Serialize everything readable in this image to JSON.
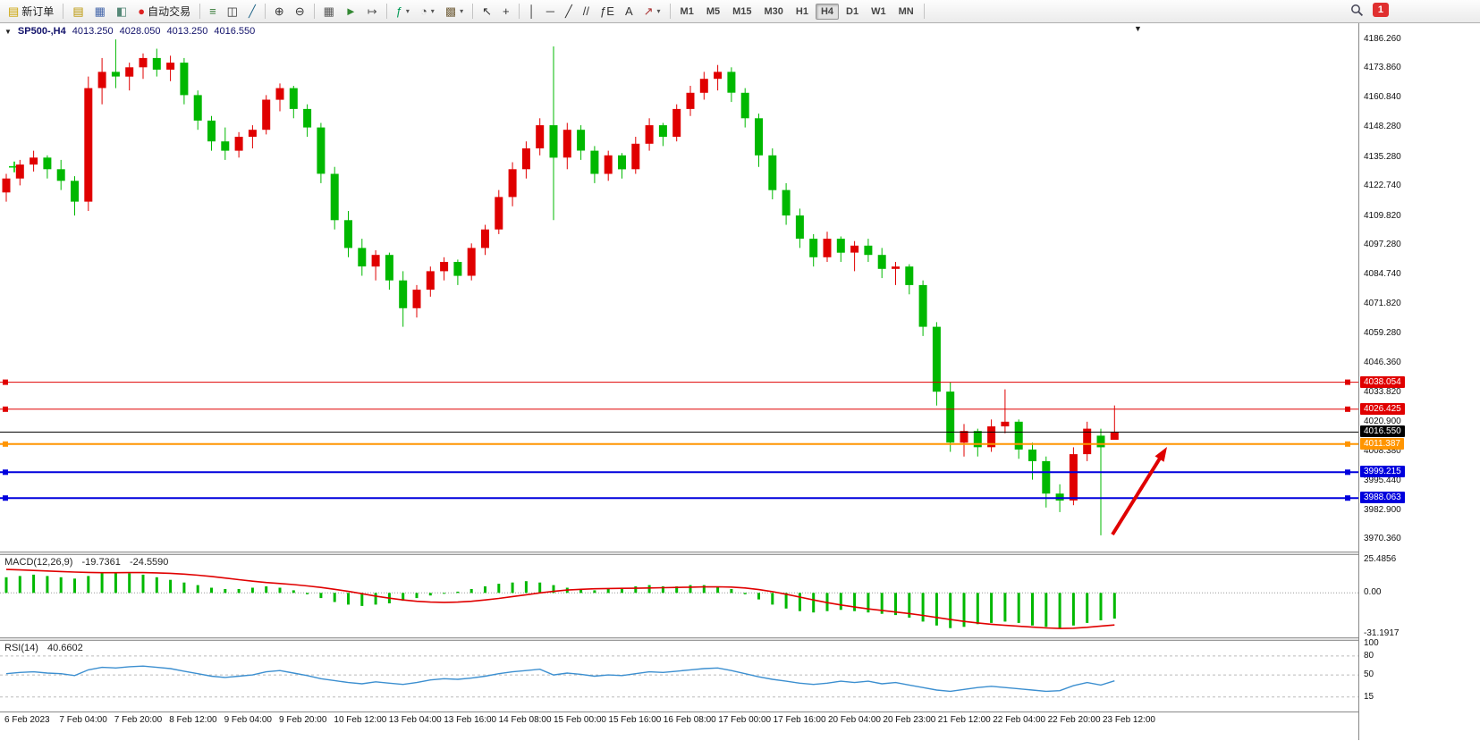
{
  "toolbar": {
    "new_order_label": "新订单",
    "autotrade_label": "自动交易",
    "left_icons": [
      {
        "name": "market-watch-icon",
        "glyph": "▤",
        "color": "#b99400"
      },
      {
        "name": "data-window-icon",
        "glyph": "▦",
        "color": "#4466aa"
      },
      {
        "name": "navigator-icon",
        "glyph": "◧",
        "color": "#558877"
      }
    ],
    "chart_type_icons": [
      {
        "name": "bar-chart-icon",
        "glyph": "≡",
        "color": "#357a38"
      },
      {
        "name": "candlestick-chart-icon",
        "glyph": "◫",
        "color": "#333333"
      },
      {
        "name": "line-chart-icon",
        "glyph": "╱",
        "color": "#226688"
      }
    ],
    "zoom_icons": [
      {
        "name": "zoom-in-icon",
        "glyph": "⊕",
        "color": "#333333"
      },
      {
        "name": "zoom-out-icon",
        "glyph": "⊖",
        "color": "#333333"
      }
    ],
    "window_icons": [
      {
        "name": "tile-windows-icon",
        "glyph": "▦",
        "color": "#555555"
      },
      {
        "name": "autoscroll-icon",
        "glyph": "►",
        "color": "#338833"
      },
      {
        "name": "chart-shift-icon",
        "glyph": "↦",
        "color": "#555555"
      }
    ],
    "dropdown_icons": [
      {
        "name": "indicators-icon",
        "glyph": "ƒ",
        "color": "#009955",
        "caret": true
      },
      {
        "name": "periods-icon",
        "glyph": "◔",
        "color": "#555555",
        "caret": true
      },
      {
        "name": "templates-icon",
        "glyph": "▩",
        "color": "#776644",
        "caret": true
      }
    ],
    "cursor_icons": [
      {
        "name": "cursor-icon",
        "glyph": "↖",
        "color": "#333333"
      },
      {
        "name": "crosshair-icon",
        "glyph": "+",
        "color": "#333333"
      }
    ],
    "draw_icons": [
      {
        "name": "vertical-line-icon",
        "glyph": "│",
        "color": "#333333"
      },
      {
        "name": "horizontal-line-icon",
        "glyph": "─",
        "color": "#333333"
      },
      {
        "name": "trendline-icon",
        "glyph": "╱",
        "color": "#333333"
      },
      {
        "name": "channel-icon",
        "glyph": "//",
        "color": "#333333"
      },
      {
        "name": "fibonacci-icon",
        "glyph": "ƒE",
        "color": "#333333"
      },
      {
        "name": "text-icon",
        "glyph": "A",
        "color": "#333333"
      },
      {
        "name": "arrows-icon",
        "glyph": "↗",
        "color": "#aa3333",
        "caret": true
      }
    ],
    "timeframes": [
      "M1",
      "M5",
      "M15",
      "M30",
      "H1",
      "H4",
      "D1",
      "W1",
      "MN"
    ],
    "active_timeframe": "H4",
    "badge_count": "1"
  },
  "chart_data": {
    "type": "candlestick",
    "title": "SP500-,H4",
    "symbol": "SP500-",
    "timeframe": "H4",
    "ohlc_label": {
      "open": "4013.250",
      "high": "4028.050",
      "low": "4013.250",
      "close": "4016.550"
    },
    "up_color": "#e00000",
    "down_color": "#00b800",
    "price_range": [
      3965,
      4193
    ],
    "candles": [
      [
        4120,
        4128,
        4116,
        4126
      ],
      [
        4126,
        4134,
        4123,
        4132
      ],
      [
        4132,
        4138,
        4129,
        4135
      ],
      [
        4135,
        4136,
        4126,
        4130
      ],
      [
        4130,
        4134,
        4121,
        4125
      ],
      [
        4125,
        4127,
        4110,
        4116
      ],
      [
        4116,
        4170,
        4112,
        4165
      ],
      [
        4165,
        4178,
        4158,
        4172
      ],
      [
        4172,
        4186,
        4165,
        4170
      ],
      [
        4170,
        4176,
        4164,
        4174
      ],
      [
        4174,
        4180,
        4169,
        4178
      ],
      [
        4178,
        4182,
        4170,
        4173
      ],
      [
        4173,
        4179,
        4168,
        4176
      ],
      [
        4176,
        4178,
        4158,
        4162
      ],
      [
        4162,
        4164,
        4147,
        4151
      ],
      [
        4151,
        4153,
        4138,
        4142
      ],
      [
        4142,
        4148,
        4134,
        4138
      ],
      [
        4138,
        4146,
        4135,
        4144
      ],
      [
        4144,
        4149,
        4139,
        4147
      ],
      [
        4147,
        4162,
        4145,
        4160
      ],
      [
        4160,
        4167,
        4155,
        4165
      ],
      [
        4165,
        4166,
        4152,
        4156
      ],
      [
        4156,
        4158,
        4144,
        4148
      ],
      [
        4148,
        4150,
        4124,
        4128
      ],
      [
        4128,
        4131,
        4104,
        4108
      ],
      [
        4108,
        4112,
        4092,
        4096
      ],
      [
        4096,
        4100,
        4084,
        4088
      ],
      [
        4088,
        4095,
        4082,
        4093
      ],
      [
        4093,
        4094,
        4078,
        4082
      ],
      [
        4082,
        4086,
        4062,
        4070
      ],
      [
        4070,
        4080,
        4066,
        4078
      ],
      [
        4078,
        4088,
        4075,
        4086
      ],
      [
        4086,
        4092,
        4082,
        4090
      ],
      [
        4090,
        4091,
        4080,
        4084
      ],
      [
        4084,
        4098,
        4082,
        4096
      ],
      [
        4096,
        4106,
        4093,
        4104
      ],
      [
        4104,
        4121,
        4102,
        4118
      ],
      [
        4118,
        4133,
        4114,
        4130
      ],
      [
        4130,
        4142,
        4126,
        4139
      ],
      [
        4139,
        4152,
        4136,
        4149
      ],
      [
        4149,
        4183,
        4108,
        4135
      ],
      [
        4135,
        4150,
        4130,
        4147
      ],
      [
        4147,
        4149,
        4134,
        4138
      ],
      [
        4138,
        4140,
        4124,
        4128
      ],
      [
        4128,
        4138,
        4125,
        4136
      ],
      [
        4136,
        4137,
        4126,
        4130
      ],
      [
        4130,
        4144,
        4128,
        4141
      ],
      [
        4141,
        4152,
        4138,
        4149
      ],
      [
        4149,
        4150,
        4140,
        4144
      ],
      [
        4144,
        4158,
        4142,
        4156
      ],
      [
        4156,
        4166,
        4153,
        4163
      ],
      [
        4163,
        4172,
        4160,
        4169
      ],
      [
        4169,
        4175,
        4164,
        4172
      ],
      [
        4172,
        4174,
        4159,
        4163
      ],
      [
        4163,
        4165,
        4148,
        4152
      ],
      [
        4152,
        4154,
        4131,
        4136
      ],
      [
        4136,
        4139,
        4117,
        4121
      ],
      [
        4121,
        4124,
        4106,
        4110
      ],
      [
        4110,
        4113,
        4096,
        4100
      ],
      [
        4100,
        4102,
        4088,
        4092
      ],
      [
        4092,
        4103,
        4090,
        4100
      ],
      [
        4100,
        4101,
        4090,
        4094
      ],
      [
        4094,
        4099,
        4086,
        4097
      ],
      [
        4097,
        4100,
        4090,
        4093
      ],
      [
        4093,
        4096,
        4083,
        4087
      ],
      [
        4087,
        4090,
        4080,
        4088
      ],
      [
        4088,
        4089,
        4076,
        4080
      ],
      [
        4080,
        4082,
        4058,
        4062
      ],
      [
        4062,
        4064,
        4028,
        4034
      ],
      [
        4034,
        4038,
        4008,
        4012
      ],
      [
        4012,
        4020,
        4006,
        4017
      ],
      [
        4017,
        4018,
        4006,
        4010
      ],
      [
        4010,
        4022,
        4008,
        4019
      ],
      [
        4019,
        4035,
        4016,
        4021
      ],
      [
        4021,
        4022,
        4005,
        4009
      ],
      [
        4009,
        4012,
        3996,
        4004
      ],
      [
        4004,
        4006,
        3984,
        3990
      ],
      [
        3990,
        3994,
        3982,
        3987
      ],
      [
        3987,
        4010,
        3985,
        4007
      ],
      [
        4007,
        4021,
        4004,
        4018
      ],
      [
        4015,
        4018,
        3972,
        4010
      ],
      [
        4013.25,
        4028.05,
        4013.25,
        4016.55
      ]
    ],
    "price_ticks": [
      "4186.260",
      "4173.860",
      "4160.840",
      "4148.280",
      "4135.280",
      "4122.740",
      "4109.820",
      "4097.280",
      "4084.740",
      "4071.820",
      "4059.280",
      "4046.360",
      "4033.820",
      "4020.900",
      "4008.380",
      "3995.440",
      "3982.900",
      "3970.360"
    ],
    "levels": [
      {
        "price": 4038.054,
        "label": "4038.054",
        "color": "#e00000",
        "width": 1,
        "handles": true
      },
      {
        "price": 4026.425,
        "label": "4026.425",
        "color": "#e00000",
        "width": 1,
        "handles": true
      },
      {
        "price": 4016.55,
        "label": "4016.550",
        "color": "#000000",
        "width": 1,
        "handles": false
      },
      {
        "price": 4011.387,
        "label": "4011.387",
        "color": "#ff9500",
        "width": 2,
        "handles": true
      },
      {
        "price": 3999.215,
        "label": "3999.215",
        "color": "#0000dd",
        "width": 2,
        "handles": true
      },
      {
        "price": 3988.063,
        "label": "3988.063",
        "color": "#0000dd",
        "width": 2,
        "handles": true
      }
    ],
    "time_labels": [
      "6 Feb 2023",
      "7 Feb 04:00",
      "7 Feb 20:00",
      "8 Feb 12:00",
      "9 Feb 04:00",
      "9 Feb 20:00",
      "10 Feb 12:00",
      "13 Feb 04:00",
      "13 Feb 16:00",
      "14 Feb 08:00",
      "15 Feb 00:00",
      "15 Feb 16:00",
      "16 Feb 08:00",
      "17 Feb 00:00",
      "17 Feb 16:00",
      "20 Feb 04:00",
      "20 Feb 23:00",
      "21 Feb 12:00",
      "22 Feb 04:00",
      "22 Feb 20:00",
      "23 Feb 12:00"
    ],
    "indicators": [
      {
        "type": "macd",
        "label": "MACD(12,26,9)",
        "values": [
          "-19.7361",
          "-24.5590"
        ],
        "axis_labels": [
          25.4856,
          0.0,
          -31.1917
        ],
        "axis_texts": [
          "25.4856",
          "0.00",
          "-31.1917"
        ],
        "range": [
          -34,
          29
        ],
        "histogram_color": "#00b800",
        "signal_color": "#e00000",
        "histogram": [
          12,
          13,
          14,
          13,
          12,
          11,
          13,
          15,
          16,
          15,
          14,
          12,
          10,
          8,
          6,
          4,
          3,
          3,
          4,
          5,
          4,
          2,
          -1,
          -4,
          -7,
          -9,
          -10,
          -9,
          -8,
          -6,
          -4,
          -2,
          0,
          1,
          3,
          5,
          7,
          8,
          9,
          8,
          6,
          4,
          3,
          2,
          3,
          4,
          5,
          6,
          5,
          5,
          6,
          6,
          5,
          3,
          -1,
          -5,
          -9,
          -12,
          -14,
          -15,
          -14,
          -13,
          -14,
          -15,
          -16,
          -17,
          -19,
          -22,
          -25,
          -27,
          -26,
          -24,
          -23,
          -22,
          -23,
          -25,
          -26,
          -27,
          -25,
          -23,
          -21,
          -19.74
        ],
        "signal": [
          18,
          17.6,
          17.2,
          16.8,
          16.4,
          16,
          15.7,
          15.5,
          15.5,
          15.6,
          15.6,
          15.4,
          15,
          14.4,
          13.6,
          12.6,
          11.4,
          10.2,
          9,
          8,
          7.2,
          6.4,
          5.4,
          4.2,
          2.8,
          1.2,
          -0.6,
          -2.4,
          -4,
          -5.4,
          -6.4,
          -7,
          -7.2,
          -7,
          -6.4,
          -5.4,
          -4.2,
          -2.8,
          -1.4,
          0,
          1.2,
          2.2,
          2.8,
          3.2,
          3.4,
          3.5,
          3.6,
          3.8,
          4,
          4.2,
          4.4,
          4.6,
          4.7,
          4.5,
          3.8,
          2.6,
          1,
          -1,
          -3.2,
          -5.4,
          -7.4,
          -9.2,
          -10.8,
          -12.2,
          -13.4,
          -14.6,
          -15.8,
          -17.2,
          -18.8,
          -20.4,
          -21.8,
          -23,
          -24,
          -24.8,
          -25.5,
          -26.2,
          -26.8,
          -27.2,
          -27,
          -26.3,
          -25.4,
          -24.56
        ]
      },
      {
        "type": "rsi",
        "label": "RSI(14)",
        "value": "40.6602",
        "axis_labels": [
          100,
          80,
          50,
          15
        ],
        "axis_texts": [
          "100",
          "80",
          "50",
          "15"
        ],
        "range": [
          -8,
          104
        ],
        "line_color": "#3c8fd0",
        "grid_levels": [
          80,
          50,
          15
        ],
        "values": [
          52,
          54,
          55,
          53,
          52,
          49,
          58,
          62,
          61,
          63,
          64,
          62,
          60,
          56,
          52,
          48,
          46,
          48,
          50,
          55,
          57,
          53,
          49,
          44,
          41,
          38,
          36,
          39,
          37,
          35,
          38,
          42,
          44,
          43,
          45,
          48,
          52,
          55,
          57,
          59,
          50,
          53,
          51,
          48,
          50,
          49,
          52,
          55,
          54,
          56,
          58,
          60,
          61,
          57,
          52,
          47,
          43,
          40,
          37,
          35,
          37,
          40,
          38,
          40,
          36,
          38,
          34,
          30,
          26,
          24,
          27,
          30,
          32,
          30,
          28,
          26,
          24,
          25,
          33,
          38,
          34,
          40.66
        ]
      }
    ],
    "annotation_arrow": {
      "color": "#e00000",
      "from": [
        1244,
        572
      ],
      "to": [
        1305,
        474
      ]
    },
    "marker_plus": {
      "price": 4131,
      "x": 16,
      "color": "#00cc00"
    }
  }
}
